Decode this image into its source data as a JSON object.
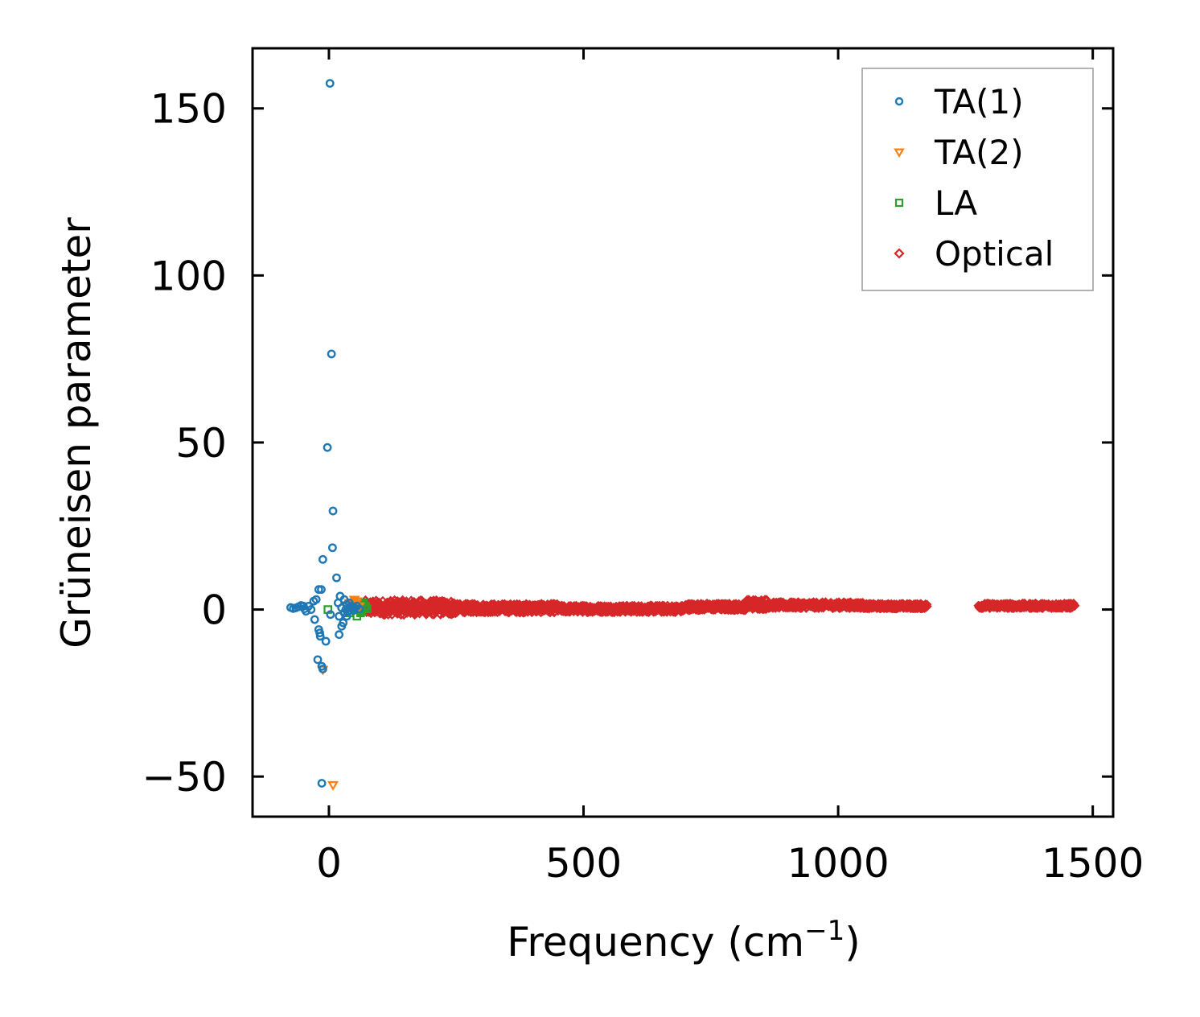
{
  "chart_data": {
    "type": "scatter",
    "xlabel": "Frequency (cm",
    "xlabel_sup": "−1",
    "xlabel_end": ")",
    "ylabel": "Grüneisen parameter",
    "xlim": [
      -150,
      1540
    ],
    "ylim": [
      -62,
      168
    ],
    "xticks": [
      0,
      500,
      1000,
      1500
    ],
    "xtick_labels": [
      "0",
      "500",
      "1000",
      "1500"
    ],
    "yticks": [
      -50,
      0,
      50,
      100,
      150
    ],
    "ytick_labels": [
      "−50",
      "0",
      "50",
      "100",
      "150"
    ],
    "grid": false,
    "legend_position": "top-right",
    "series": [
      {
        "name": "TA(1)",
        "marker": "circle",
        "color": "#1f77b4",
        "points": [
          [
            2,
            157.5
          ],
          [
            5,
            76.5
          ],
          [
            -3,
            48.5
          ],
          [
            8,
            29.5
          ],
          [
            7,
            18.5
          ],
          [
            15,
            9.5
          ],
          [
            -12,
            15
          ],
          [
            -15,
            6
          ],
          [
            -20,
            6
          ],
          [
            -25,
            3
          ],
          [
            -30,
            2.5
          ],
          [
            -40,
            1
          ],
          [
            -50,
            1
          ],
          [
            -55,
            1.2
          ],
          [
            -60,
            0.8
          ],
          [
            -65,
            0.5
          ],
          [
            -70,
            0.3
          ],
          [
            -75,
            0.6
          ],
          [
            -48,
            0.2
          ],
          [
            -45,
            -0.5
          ],
          [
            -35,
            0
          ],
          [
            -28,
            -3
          ],
          [
            -20,
            -6
          ],
          [
            -18,
            -7
          ],
          [
            -17,
            -8
          ],
          [
            -22,
            -15
          ],
          [
            -14,
            -17
          ],
          [
            -12,
            -17.8
          ],
          [
            -6,
            -9.5
          ],
          [
            3,
            -1.5
          ],
          [
            20,
            -7.5
          ],
          [
            25,
            -5
          ],
          [
            28,
            -4
          ],
          [
            22,
            4
          ],
          [
            30,
            3
          ],
          [
            18,
            2
          ],
          [
            35,
            1.5
          ],
          [
            40,
            2
          ],
          [
            45,
            1
          ],
          [
            50,
            0.5
          ],
          [
            55,
            1
          ],
          [
            60,
            0.2
          ],
          [
            30,
            -1
          ],
          [
            35,
            -2
          ],
          [
            25,
            0.5
          ],
          [
            20,
            -2
          ],
          [
            33,
            0
          ],
          [
            38,
            -0.5
          ],
          [
            42,
            0.8
          ],
          [
            48,
            -0.3
          ],
          [
            -14,
            -52
          ]
        ]
      },
      {
        "name": "TA(2)",
        "marker": "triangle-down",
        "color": "#ff7f0e",
        "points": [
          [
            8,
            -52.5
          ],
          [
            -12,
            -18
          ],
          [
            40,
            2
          ],
          [
            45,
            1.5
          ],
          [
            50,
            3
          ],
          [
            55,
            2.5
          ],
          [
            60,
            1
          ],
          [
            35,
            1
          ],
          [
            42,
            0.5
          ],
          [
            48,
            2
          ],
          [
            53,
            1.8
          ],
          [
            58,
            0.6
          ]
        ]
      },
      {
        "name": "LA",
        "marker": "square",
        "color": "#2ca02c",
        "points": [
          [
            -2,
            0
          ],
          [
            40,
            -1
          ],
          [
            45,
            0.5
          ],
          [
            50,
            1
          ],
          [
            55,
            -2
          ],
          [
            60,
            0
          ],
          [
            62,
            -1
          ],
          [
            65,
            1.5
          ],
          [
            68,
            2
          ],
          [
            70,
            0.5
          ],
          [
            72,
            1
          ],
          [
            75,
            0.2
          ],
          [
            65,
            -0.5
          ],
          [
            58,
            1.2
          ]
        ]
      },
      {
        "name": "Optical",
        "marker": "diamond",
        "color": "#d62728",
        "segments": [
          {
            "x_start": 70,
            "x_end": 250,
            "y_center": 0.6,
            "spread": 2.3
          },
          {
            "x_start": 250,
            "x_end": 450,
            "y_center": 0.4,
            "spread": 1.4
          },
          {
            "x_start": 450,
            "x_end": 700,
            "y_center": 0.2,
            "spread": 1.1
          },
          {
            "x_start": 700,
            "x_end": 820,
            "y_center": 0.8,
            "spread": 1.1
          },
          {
            "x_start": 820,
            "x_end": 860,
            "y_center": 1.6,
            "spread": 1.6
          },
          {
            "x_start": 860,
            "x_end": 1050,
            "y_center": 1.3,
            "spread": 1.0
          },
          {
            "x_start": 1050,
            "x_end": 1175,
            "y_center": 1.0,
            "spread": 0.8
          },
          {
            "x_start": 1275,
            "x_end": 1370,
            "y_center": 1.1,
            "spread": 0.8
          },
          {
            "x_start": 1375,
            "x_end": 1465,
            "y_center": 1.1,
            "spread": 0.8
          }
        ]
      }
    ]
  }
}
